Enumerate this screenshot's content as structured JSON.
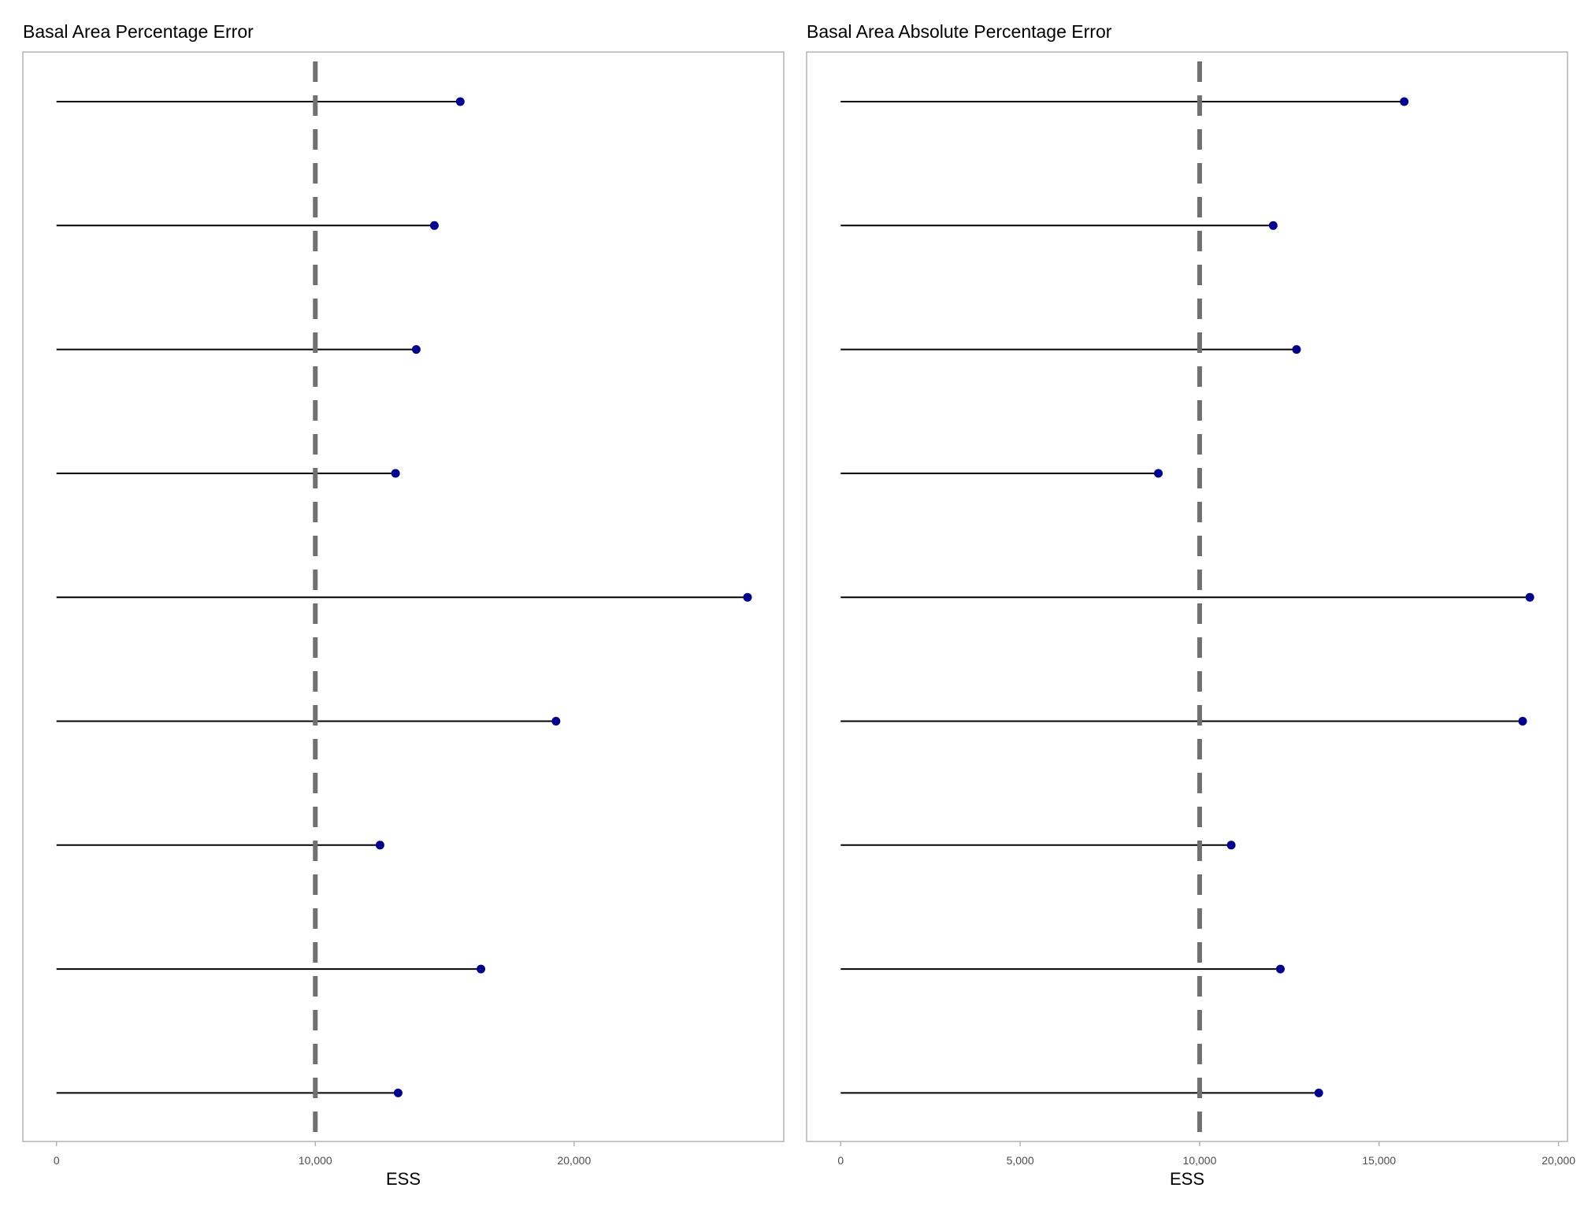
{
  "chart_data": [
    {
      "type": "lollipop",
      "orientation": "horizontal",
      "title": "Basal Area Percentage Error",
      "xlabel": "ESS",
      "ylabel": "",
      "xlim": [
        -1300,
        28100
      ],
      "xticks": [
        0,
        10000,
        20000
      ],
      "xtick_labels": [
        "0",
        "10,000",
        "20,000"
      ],
      "reference_line": 10000,
      "values": [
        15600,
        14600,
        13900,
        13100,
        26700,
        19300,
        12500,
        16400,
        13200
      ],
      "grid": false
    },
    {
      "type": "lollipop",
      "orientation": "horizontal",
      "title": "Basal Area Absolute Percentage Error",
      "xlabel": "ESS",
      "ylabel": "",
      "xlim": [
        -950,
        20250
      ],
      "xticks": [
        0,
        5000,
        10000,
        15000,
        20000
      ],
      "xtick_labels": [
        "0",
        "5,000",
        "10,000",
        "15,000",
        "20,000"
      ],
      "reference_line": 10000,
      "values": [
        15700,
        12050,
        12700,
        8850,
        19200,
        19000,
        10880,
        12250,
        13320
      ],
      "grid": false
    }
  ],
  "colors": {
    "point": "#00008b",
    "segment": "#000000",
    "reference_line": "#707070",
    "panel_border": "#b3b3b3",
    "tick_text": "#4d4d4d"
  }
}
